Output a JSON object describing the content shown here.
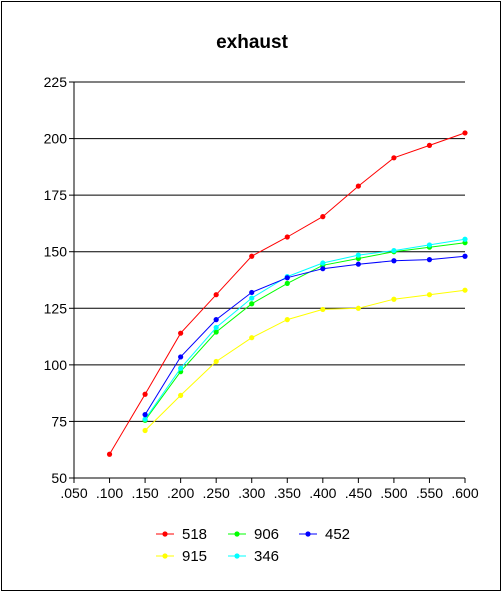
{
  "chart_data": {
    "type": "line",
    "title": "exhaust",
    "xlabel": "",
    "ylabel": "",
    "xlim": [
      0.05,
      0.6
    ],
    "ylim": [
      50,
      225
    ],
    "xticks": [
      0.05,
      0.1,
      0.15,
      0.2,
      0.25,
      0.3,
      0.35,
      0.4,
      0.45,
      0.5,
      0.55,
      0.6
    ],
    "xtick_labels": [
      ".050",
      ".100",
      ".150",
      ".200",
      ".250",
      ".300",
      ".350",
      ".400",
      ".450",
      ".500",
      ".550",
      ".600"
    ],
    "yticks": [
      50,
      75,
      100,
      125,
      150,
      175,
      200,
      225
    ],
    "ytick_labels": [
      "50",
      "75",
      "100",
      "125",
      "150",
      "175",
      "200",
      "225"
    ],
    "grid": "horizontal",
    "legend_position": "bottom",
    "series": [
      {
        "name": "518",
        "color": "#ff0000",
        "x": [
          0.1,
          0.15,
          0.2,
          0.25,
          0.3,
          0.35,
          0.4,
          0.45,
          0.5,
          0.55,
          0.6
        ],
        "y": [
          60.5,
          87,
          114,
          131,
          148,
          156.5,
          165.5,
          179,
          191.5,
          197,
          202.5
        ]
      },
      {
        "name": "915",
        "color": "#ffff00",
        "x": [
          0.15,
          0.2,
          0.25,
          0.3,
          0.35,
          0.4,
          0.45,
          0.5,
          0.55,
          0.6
        ],
        "y": [
          71,
          86.5,
          101.5,
          112,
          120,
          124.5,
          125,
          129,
          131,
          133
        ]
      },
      {
        "name": "906",
        "color": "#00ff00",
        "x": [
          0.15,
          0.2,
          0.25,
          0.3,
          0.35,
          0.4,
          0.45,
          0.5,
          0.55,
          0.6
        ],
        "y": [
          75.5,
          97,
          114.5,
          127,
          136,
          144,
          147,
          150,
          152,
          154
        ]
      },
      {
        "name": "346",
        "color": "#00ffff",
        "x": [
          0.15,
          0.2,
          0.25,
          0.3,
          0.35,
          0.4,
          0.45,
          0.5,
          0.55,
          0.6
        ],
        "y": [
          76,
          98.5,
          116.5,
          129.5,
          139,
          145,
          148.5,
          150.5,
          153,
          155.5
        ]
      },
      {
        "name": "452",
        "color": "#0000ff",
        "x": [
          0.15,
          0.2,
          0.25,
          0.3,
          0.35,
          0.4,
          0.45,
          0.5,
          0.55,
          0.6
        ],
        "y": [
          78,
          103.5,
          120,
          132,
          138.5,
          142.5,
          144.5,
          146,
          146.5,
          148
        ]
      }
    ],
    "legend_order": [
      "518",
      "906",
      "452",
      "915",
      "346"
    ]
  }
}
